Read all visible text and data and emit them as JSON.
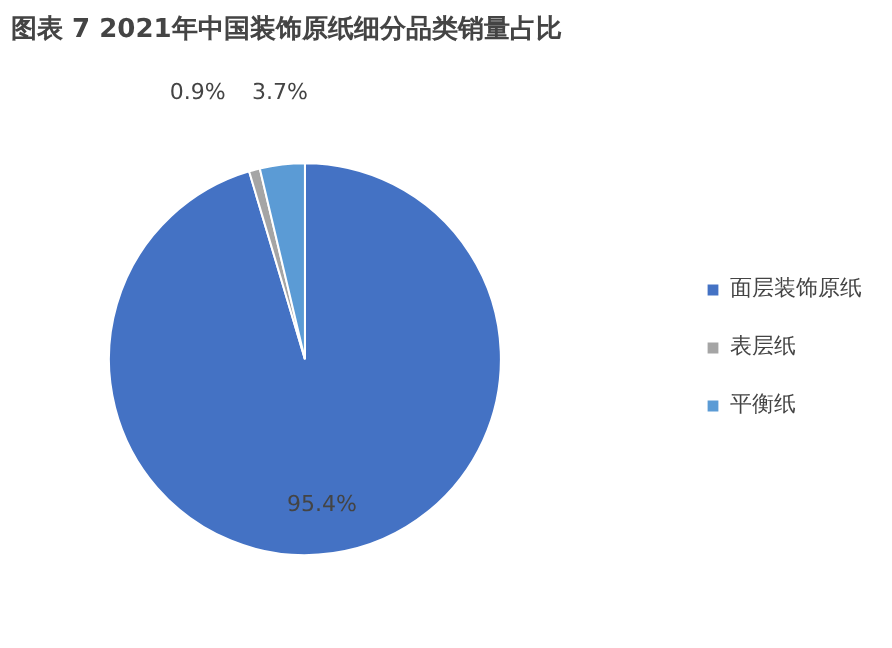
{
  "chart_data": {
    "type": "pie",
    "title": "图表 7 2021年中国装饰原纸细分品类销量占比",
    "categories": [
      "面层装饰原纸",
      "表层纸",
      "平衡纸"
    ],
    "values": [
      95.4,
      0.9,
      3.7
    ],
    "colors": [
      "#4472c4",
      "#a5a5a5",
      "#5b9bd5"
    ],
    "value_labels": [
      "95.4%",
      "0.9%",
      "3.7%"
    ],
    "legend": "right"
  }
}
